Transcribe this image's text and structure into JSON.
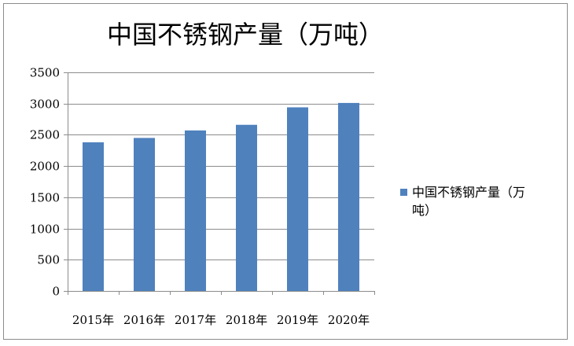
{
  "chart_data": {
    "type": "bar",
    "title": "中国不锈钢产量（万吨）",
    "categories": [
      "2015年",
      "2016年",
      "2017年",
      "2018年",
      "2019年",
      "2020年"
    ],
    "series": [
      {
        "name": "中国不锈钢产量（万吨）",
        "legend_lines": [
          "中国不锈钢产量（万",
          "吨）"
        ],
        "values": [
          2380,
          2450,
          2570,
          2660,
          2940,
          3010
        ],
        "color": "#4f81bd"
      }
    ],
    "ylim": [
      0,
      3500
    ],
    "yticks": [
      0,
      500,
      1000,
      1500,
      2000,
      2500,
      3000,
      3500
    ],
    "xlabel": "",
    "ylabel": "",
    "grid": true,
    "legend": "right"
  }
}
